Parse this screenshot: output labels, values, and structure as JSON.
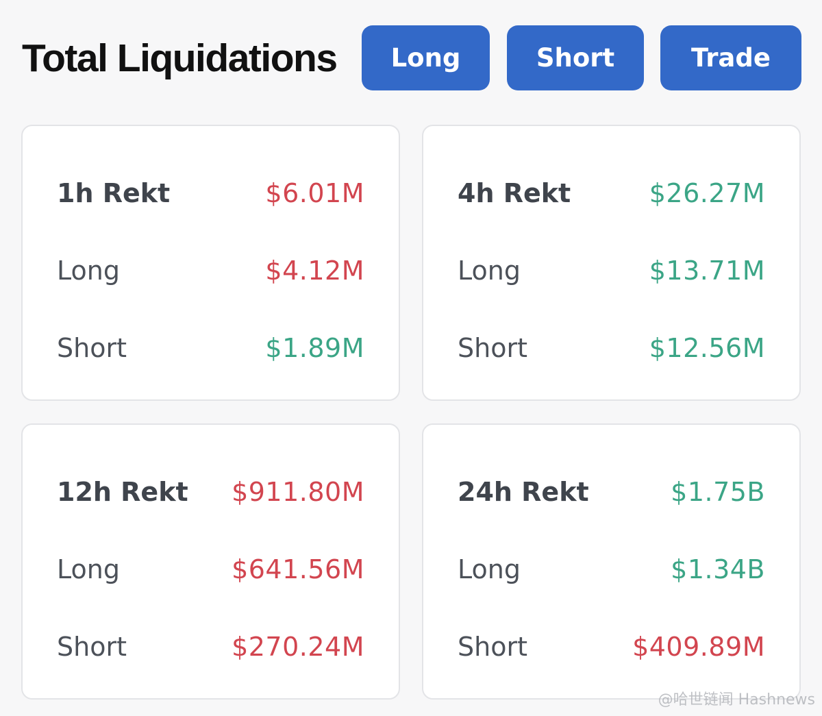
{
  "header": {
    "title": "Total Liquidations",
    "buttons": [
      {
        "label": "Long"
      },
      {
        "label": "Short"
      },
      {
        "label": "Trade"
      }
    ]
  },
  "cards": [
    {
      "rows": [
        {
          "label": "1h Rekt",
          "value": "$6.01M",
          "color": "red"
        },
        {
          "label": "Long",
          "value": "$4.12M",
          "color": "red"
        },
        {
          "label": "Short",
          "value": "$1.89M",
          "color": "green"
        }
      ]
    },
    {
      "rows": [
        {
          "label": "4h Rekt",
          "value": "$26.27M",
          "color": "green"
        },
        {
          "label": "Long",
          "value": "$13.71M",
          "color": "green"
        },
        {
          "label": "Short",
          "value": "$12.56M",
          "color": "green"
        }
      ]
    },
    {
      "rows": [
        {
          "label": "12h Rekt",
          "value": "$911.80M",
          "color": "red"
        },
        {
          "label": "Long",
          "value": "$641.56M",
          "color": "red"
        },
        {
          "label": "Short",
          "value": "$270.24M",
          "color": "red"
        }
      ]
    },
    {
      "rows": [
        {
          "label": "24h Rekt",
          "value": "$1.75B",
          "color": "green"
        },
        {
          "label": "Long",
          "value": "$1.34B",
          "color": "green"
        },
        {
          "label": "Short",
          "value": "$409.89M",
          "color": "red"
        }
      ]
    }
  ],
  "colors": {
    "red": "#d2454f",
    "green": "#3ba586",
    "button": "#3369c8"
  },
  "watermark": "@哈世链闻 Hashnews"
}
